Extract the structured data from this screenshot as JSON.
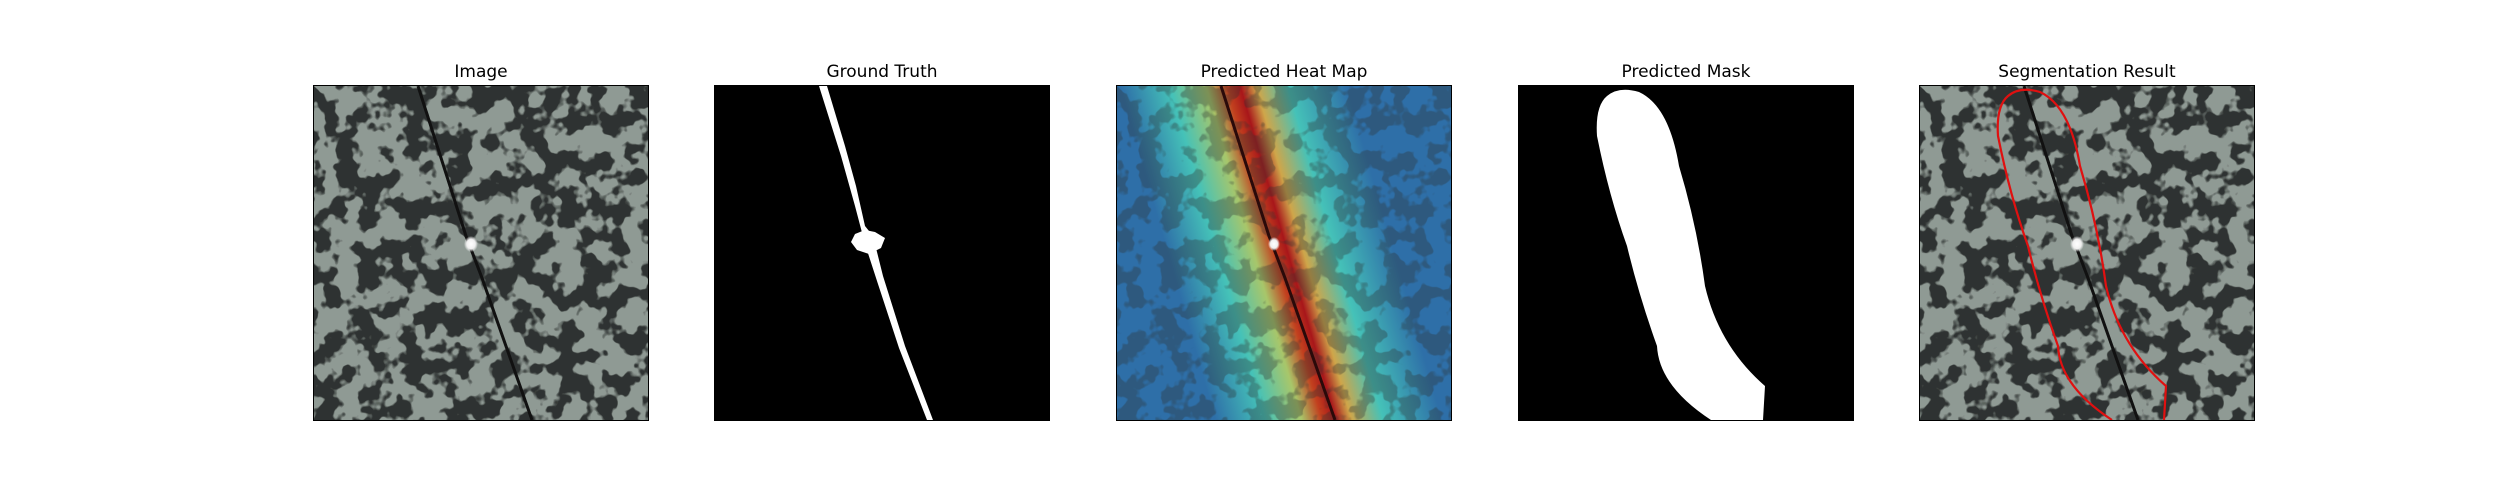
{
  "figure": {
    "panels": [
      {
        "title": "Image"
      },
      {
        "title": "Ground Truth"
      },
      {
        "title": "Predicted Heat Map"
      },
      {
        "title": "Predicted Mask"
      },
      {
        "title": "Segmentation Result"
      }
    ]
  },
  "colors": {
    "texture_base": "#8f9a94",
    "texture_dark": "#2f3332",
    "crack_line": "#111111",
    "mask_fg": "#ffffff",
    "mask_bg": "#000000",
    "contour": "#e01010",
    "heat_low": "#2e6fa8",
    "heat_mid": "#45c2b8",
    "heat_high": "#b0161a"
  }
}
